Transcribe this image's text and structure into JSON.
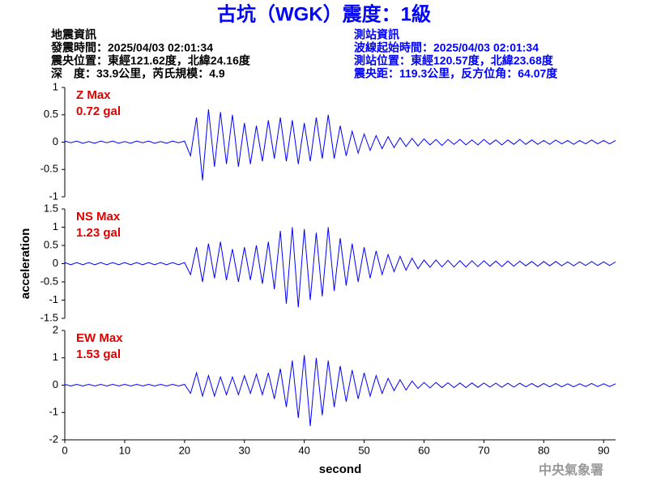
{
  "header": {
    "title": "古坑（WGK）震度：1級",
    "left": [
      "地震資訊",
      "發震時間：2025/04/03 02:01:34",
      "震央位置：東經121.62度，北緯24.16度",
      "深　度：33.9公里，芮氏規模：4.9"
    ],
    "right": [
      "測站資訊",
      "波線起始時間：2025/04/03 02:01:34",
      "測站位置：東經120.57度，北緯23.68度",
      "震央距：119.3公里，反方位角：64.07度"
    ],
    "watermark": "中央氣象署"
  },
  "chart_data": [
    {
      "type": "line",
      "annotations": [
        "Z Max",
        "0.72 gal"
      ],
      "color": "#0000ff",
      "xlim": [
        0,
        92
      ],
      "ylim": [
        -1,
        1
      ],
      "yticks": [
        1,
        0.5,
        0,
        -0.5,
        -1
      ],
      "x": [
        0,
        1,
        2,
        3,
        4,
        5,
        6,
        7,
        8,
        9,
        10,
        11,
        12,
        13,
        14,
        15,
        16,
        17,
        18,
        19,
        20,
        21,
        22,
        23,
        24,
        25,
        26,
        27,
        28,
        29,
        30,
        31,
        32,
        33,
        34,
        35,
        36,
        37,
        38,
        39,
        40,
        41,
        42,
        43,
        44,
        45,
        46,
        47,
        48,
        49,
        50,
        51,
        52,
        53,
        54,
        55,
        56,
        57,
        58,
        59,
        60,
        61,
        62,
        63,
        64,
        65,
        66,
        67,
        68,
        69,
        70,
        71,
        72,
        73,
        74,
        75,
        76,
        77,
        78,
        79,
        80,
        81,
        82,
        83,
        84,
        85,
        86,
        87,
        88,
        89,
        90,
        91,
        92
      ],
      "values": [
        0.02,
        -0.01,
        0.02,
        -0.02,
        0.01,
        -0.02,
        0.02,
        -0.01,
        0.02,
        -0.02,
        0.01,
        -0.02,
        0.02,
        -0.01,
        0.02,
        -0.02,
        0.01,
        -0.02,
        0.02,
        -0.01,
        0.02,
        -0.25,
        0.45,
        -0.7,
        0.6,
        -0.45,
        0.55,
        -0.4,
        0.5,
        -0.45,
        0.35,
        -0.4,
        0.3,
        -0.35,
        0.4,
        -0.3,
        0.45,
        -0.35,
        0.4,
        -0.4,
        0.35,
        -0.35,
        0.45,
        -0.3,
        0.5,
        -0.3,
        0.3,
        -0.25,
        0.2,
        -0.2,
        0.15,
        -0.15,
        0.12,
        -0.12,
        0.1,
        -0.1,
        0.08,
        -0.08,
        0.07,
        -0.07,
        0.06,
        -0.05,
        0.05,
        -0.06,
        0.05,
        -0.04,
        0.05,
        -0.05,
        0.04,
        -0.05,
        0.05,
        -0.04,
        0.04,
        -0.05,
        0.04,
        -0.04,
        0.05,
        -0.04,
        0.04,
        -0.04,
        0.03,
        -0.04,
        0.04,
        -0.03,
        0.03,
        -0.04,
        0.03,
        -0.03,
        0.04,
        -0.03,
        0.03,
        -0.03,
        0.03
      ]
    },
    {
      "type": "line",
      "annotations": [
        "NS Max",
        "1.23 gal"
      ],
      "color": "#0000ff",
      "ylabel": "acceleration",
      "xlim": [
        0,
        92
      ],
      "ylim": [
        -1.5,
        1.5
      ],
      "yticks": [
        1.5,
        1,
        0.5,
        0,
        -0.5,
        -1,
        -1.5
      ],
      "x": [
        0,
        1,
        2,
        3,
        4,
        5,
        6,
        7,
        8,
        9,
        10,
        11,
        12,
        13,
        14,
        15,
        16,
        17,
        18,
        19,
        20,
        21,
        22,
        23,
        24,
        25,
        26,
        27,
        28,
        29,
        30,
        31,
        32,
        33,
        34,
        35,
        36,
        37,
        38,
        39,
        40,
        41,
        42,
        43,
        44,
        45,
        46,
        47,
        48,
        49,
        50,
        51,
        52,
        53,
        54,
        55,
        56,
        57,
        58,
        59,
        60,
        61,
        62,
        63,
        64,
        65,
        66,
        67,
        68,
        69,
        70,
        71,
        72,
        73,
        74,
        75,
        76,
        77,
        78,
        79,
        80,
        81,
        82,
        83,
        84,
        85,
        86,
        87,
        88,
        89,
        90,
        91,
        92
      ],
      "values": [
        0.03,
        -0.03,
        0.03,
        -0.03,
        0.03,
        -0.03,
        0.03,
        -0.03,
        0.03,
        -0.03,
        0.03,
        -0.03,
        0.03,
        -0.03,
        0.03,
        -0.03,
        0.03,
        -0.03,
        0.03,
        -0.03,
        0.03,
        -0.3,
        0.45,
        -0.5,
        0.55,
        -0.4,
        0.6,
        -0.45,
        0.4,
        -0.5,
        0.45,
        -0.45,
        0.5,
        -0.55,
        0.6,
        -0.7,
        0.9,
        -1.1,
        1.0,
        -1.2,
        0.95,
        -1.0,
        0.85,
        -0.9,
        1.0,
        -0.75,
        0.7,
        -0.6,
        0.55,
        -0.5,
        0.45,
        -0.4,
        0.35,
        -0.3,
        0.25,
        -0.22,
        0.2,
        -0.18,
        0.15,
        -0.14,
        0.1,
        -0.1,
        0.1,
        -0.09,
        0.09,
        -0.09,
        0.08,
        -0.09,
        0.08,
        -0.08,
        0.08,
        -0.07,
        0.07,
        -0.08,
        0.07,
        -0.07,
        0.07,
        -0.06,
        0.06,
        -0.07,
        0.06,
        -0.06,
        0.06,
        -0.06,
        0.05,
        -0.06,
        0.05,
        -0.05,
        0.06,
        -0.05,
        0.05,
        -0.05,
        0.05
      ]
    },
    {
      "type": "line",
      "annotations": [
        "EW Max",
        "1.53 gal"
      ],
      "color": "#0000ff",
      "xlabel": "second",
      "xlim": [
        0,
        92
      ],
      "ylim": [
        -2,
        2
      ],
      "yticks": [
        2,
        1,
        0,
        -1,
        -2
      ],
      "xticks": [
        0,
        10,
        20,
        30,
        40,
        50,
        60,
        70,
        80,
        90
      ],
      "x": [
        0,
        1,
        2,
        3,
        4,
        5,
        6,
        7,
        8,
        9,
        10,
        11,
        12,
        13,
        14,
        15,
        16,
        17,
        18,
        19,
        20,
        21,
        22,
        23,
        24,
        25,
        26,
        27,
        28,
        29,
        30,
        31,
        32,
        33,
        34,
        35,
        36,
        37,
        38,
        39,
        40,
        41,
        42,
        43,
        44,
        45,
        46,
        47,
        48,
        49,
        50,
        51,
        52,
        53,
        54,
        55,
        56,
        57,
        58,
        59,
        60,
        61,
        62,
        63,
        64,
        65,
        66,
        67,
        68,
        69,
        70,
        71,
        72,
        73,
        74,
        75,
        76,
        77,
        78,
        79,
        80,
        81,
        82,
        83,
        84,
        85,
        86,
        87,
        88,
        89,
        90,
        91,
        92
      ],
      "values": [
        0.03,
        -0.03,
        0.03,
        -0.03,
        0.03,
        -0.03,
        0.03,
        -0.03,
        0.03,
        -0.03,
        0.03,
        -0.03,
        0.03,
        -0.03,
        0.03,
        -0.03,
        0.03,
        -0.03,
        0.03,
        -0.03,
        0.03,
        -0.3,
        0.45,
        -0.4,
        0.35,
        -0.4,
        0.3,
        -0.35,
        0.3,
        -0.35,
        0.35,
        -0.3,
        0.4,
        -0.35,
        0.45,
        -0.5,
        0.6,
        -0.8,
        0.9,
        -1.2,
        1.1,
        -1.5,
        1.0,
        -1.1,
        0.9,
        -0.8,
        0.7,
        -0.6,
        0.55,
        -0.5,
        0.45,
        -0.4,
        0.35,
        -0.3,
        0.25,
        -0.2,
        0.2,
        -0.18,
        0.15,
        -0.12,
        0.1,
        -0.1,
        0.1,
        -0.09,
        0.09,
        -0.09,
        0.08,
        -0.09,
        0.08,
        -0.08,
        0.08,
        -0.07,
        0.07,
        -0.08,
        0.07,
        -0.07,
        0.07,
        -0.06,
        0.06,
        -0.07,
        0.06,
        -0.06,
        0.06,
        -0.06,
        0.05,
        -0.06,
        0.05,
        -0.05,
        0.06,
        -0.05,
        0.05,
        -0.05,
        0.05
      ]
    }
  ]
}
